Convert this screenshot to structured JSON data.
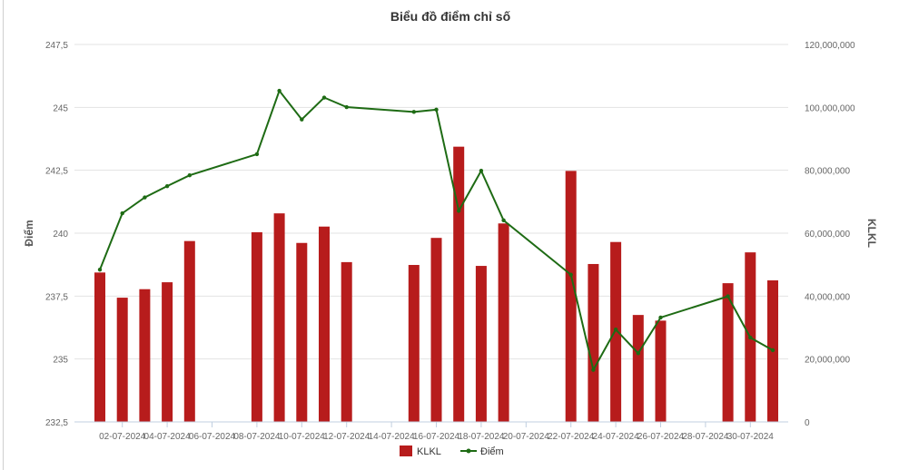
{
  "chart_data": {
    "type": "bar+line",
    "title": "Biểu đồ điểm chỉ số",
    "ylabel_left": "Điểm",
    "ylabel_right": "KLKL",
    "y_left": {
      "range": [
        232.5,
        247.5
      ],
      "ticks": [
        "232,5",
        "235",
        "237,5",
        "240",
        "242,5",
        "245",
        "247,5"
      ]
    },
    "y_right": {
      "range": [
        0,
        120000000
      ],
      "ticks": [
        "0",
        "20,000,000",
        "40,000,000",
        "60,000,000",
        "80,000,000",
        "100,000,000",
        "120,000,000"
      ]
    },
    "x_tick_labels": [
      "02-07-2024",
      "04-07-2024",
      "06-07-2024",
      "08-07-2024",
      "10-07-2024",
      "12-07-2024",
      "14-07-2024",
      "16-07-2024",
      "18-07-2024",
      "20-07-2024",
      "22-07-2024",
      "24-07-2024",
      "26-07-2024",
      "28-07-2024",
      "30-07-2024"
    ],
    "x_range_days": [
      1,
      31
    ],
    "grid": true,
    "legend_position": "bottom",
    "series": [
      {
        "name": "KLKL",
        "type": "bar",
        "axis": "right",
        "color": "#b71c1c",
        "days": [
          1,
          2,
          3,
          4,
          5,
          8,
          9,
          10,
          11,
          12,
          15,
          16,
          17,
          18,
          19,
          22,
          23,
          24,
          25,
          26,
          29,
          30,
          31
        ],
        "values": [
          47500000,
          39500000,
          42200000,
          44400000,
          57500000,
          60300000,
          66300000,
          56900000,
          62100000,
          50800000,
          49900000,
          58500000,
          87500000,
          49600000,
          63100000,
          79800000,
          50200000,
          57200000,
          34000000,
          32200000,
          44100000,
          53900000,
          45000000
        ]
      },
      {
        "name": "Điểm",
        "type": "line",
        "axis": "left",
        "color": "#1e6b14",
        "days": [
          1,
          2,
          3,
          4,
          5,
          8,
          9,
          10,
          11,
          12,
          15,
          16,
          17,
          18,
          19,
          22,
          23,
          24,
          25,
          26,
          29,
          30,
          31
        ],
        "values": [
          238.55,
          240.79,
          241.42,
          241.87,
          242.3,
          243.14,
          245.66,
          244.52,
          245.39,
          245.01,
          244.82,
          244.91,
          240.89,
          242.48,
          240.51,
          238.35,
          234.57,
          236.17,
          235.23,
          236.65,
          237.49,
          235.85,
          235.35
        ]
      }
    ]
  }
}
